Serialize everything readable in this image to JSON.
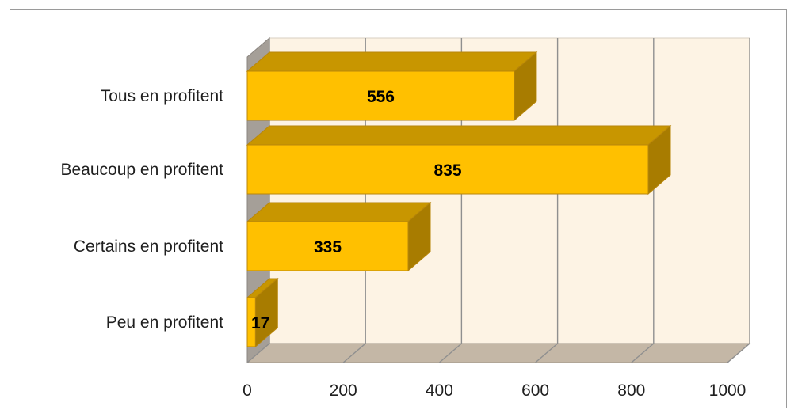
{
  "chart_data": {
    "type": "bar",
    "orientation": "horizontal",
    "style": "3d",
    "categories": [
      "Tous en profitent",
      "Beaucoup en profitent",
      "Certains en profitent",
      "Peu en profitent"
    ],
    "values": [
      556,
      835,
      335,
      17
    ],
    "data_labels": [
      "556",
      "835",
      "335",
      "17"
    ],
    "xlim": [
      0,
      1000
    ],
    "x_ticks": [
      0,
      200,
      400,
      600,
      800,
      1000
    ],
    "x_tick_labels": [
      "0",
      "200",
      "400",
      "600",
      "800",
      "1000"
    ],
    "title": "",
    "xlabel": "",
    "ylabel": "",
    "grid": true,
    "legend": "none",
    "colors": {
      "bar_front": "#FFC000",
      "bar_top": "#C89600",
      "bar_side": "#A87C00",
      "bar_edge": "#B8860B",
      "back_wall": "#FDF3E4",
      "floor": "#C4B7A6",
      "side_wall": "#A59F98",
      "gridline": "#8F8F8F"
    }
  }
}
